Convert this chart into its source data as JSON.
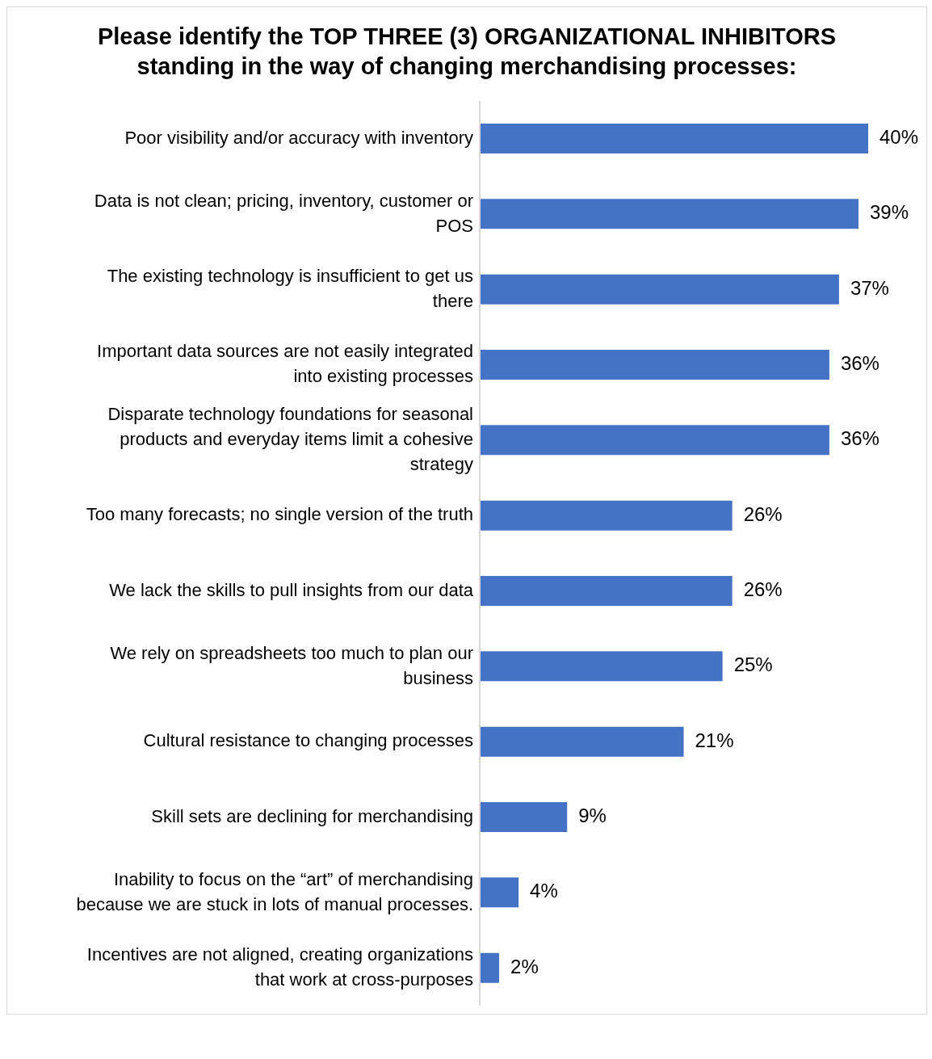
{
  "chart_data": {
    "type": "bar",
    "orientation": "horizontal",
    "title": "Please identify the TOP THREE (3) ORGANIZATIONAL INHIBITORS standing in the way of changing merchandising processes:",
    "categories": [
      "Poor visibility and/or accuracy with inventory",
      "Data is not clean; pricing, inventory, customer or POS",
      "The existing technology is insufficient to get us there",
      "Important data sources are not easily integrated into existing processes",
      "Disparate technology foundations for seasonal products and everyday items limit a cohesive strategy",
      "Too many forecasts; no single version of the truth",
      "We lack the skills to pull insights from our data",
      "We rely on spreadsheets too much to plan our business",
      "Cultural resistance to changing processes",
      "Skill sets are declining for merchandising",
      "Inability to focus on the “art” of merchandising because we are stuck in lots of  manual processes.",
      "Incentives are not aligned, creating organizations that work at cross-purposes"
    ],
    "values": [
      40,
      39,
      37,
      36,
      36,
      26,
      26,
      25,
      21,
      9,
      4,
      2
    ],
    "value_labels": [
      "40%",
      "39%",
      "37%",
      "36%",
      "36%",
      "26%",
      "26%",
      "25%",
      "21%",
      "9%",
      "4%",
      "2%"
    ],
    "color": "#4472c4"
  }
}
